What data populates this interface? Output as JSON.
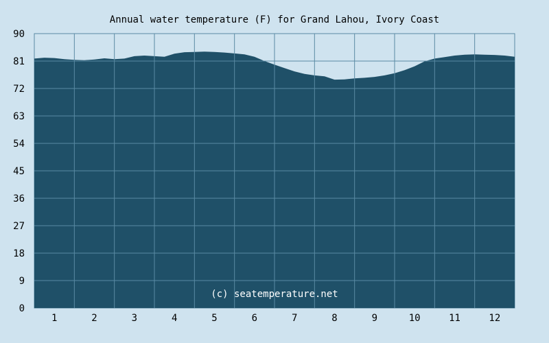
{
  "chart_data": {
    "type": "area",
    "title": "Annual water temperature (F) for Grand Lahou, Ivory Coast",
    "xlabel": "",
    "ylabel": "",
    "x_ticks": [
      "1",
      "2",
      "3",
      "4",
      "5",
      "6",
      "7",
      "8",
      "9",
      "10",
      "11",
      "12"
    ],
    "y_ticks": [
      "0",
      "9",
      "18",
      "27",
      "36",
      "45",
      "54",
      "63",
      "72",
      "81",
      "90"
    ],
    "ylim": [
      0,
      90
    ],
    "xlim": [
      0.5,
      12.5
    ],
    "grid": true,
    "watermark": "(c) seatemperature.net",
    "colors": {
      "background": "#cfe3ef",
      "plot_fill": "#1f5068",
      "grid": "#5a8aa3"
    },
    "series": [
      {
        "x": [
          0.5,
          0.75,
          1.0,
          1.25,
          1.5,
          1.75,
          2.0,
          2.25,
          2.5,
          2.75,
          3.0,
          3.25,
          3.5,
          3.75,
          4.0,
          4.25,
          4.5,
          4.75,
          5.0,
          5.25,
          5.5,
          5.75,
          6.0,
          6.25,
          6.5,
          6.75,
          7.0,
          7.25,
          7.5,
          7.75,
          8.0,
          8.25,
          8.5,
          8.75,
          9.0,
          9.25,
          9.5,
          9.75,
          10.0,
          10.25,
          10.5,
          10.75,
          11.0,
          11.25,
          11.5,
          11.75,
          12.0,
          12.25,
          12.5
        ],
        "values": [
          81.8,
          82.1,
          82.0,
          81.6,
          81.4,
          81.3,
          81.5,
          81.9,
          81.6,
          81.8,
          82.6,
          82.8,
          82.6,
          82.4,
          83.4,
          83.9,
          84.0,
          84.1,
          84.0,
          83.8,
          83.5,
          83.2,
          82.4,
          81.0,
          79.8,
          78.7,
          77.6,
          76.8,
          76.3,
          76.0,
          74.9,
          75.0,
          75.3,
          75.5,
          75.8,
          76.3,
          77.0,
          78.0,
          79.3,
          80.9,
          81.8,
          82.3,
          82.8,
          83.1,
          83.2,
          83.1,
          83.0,
          82.8,
          82.4
        ]
      }
    ]
  }
}
